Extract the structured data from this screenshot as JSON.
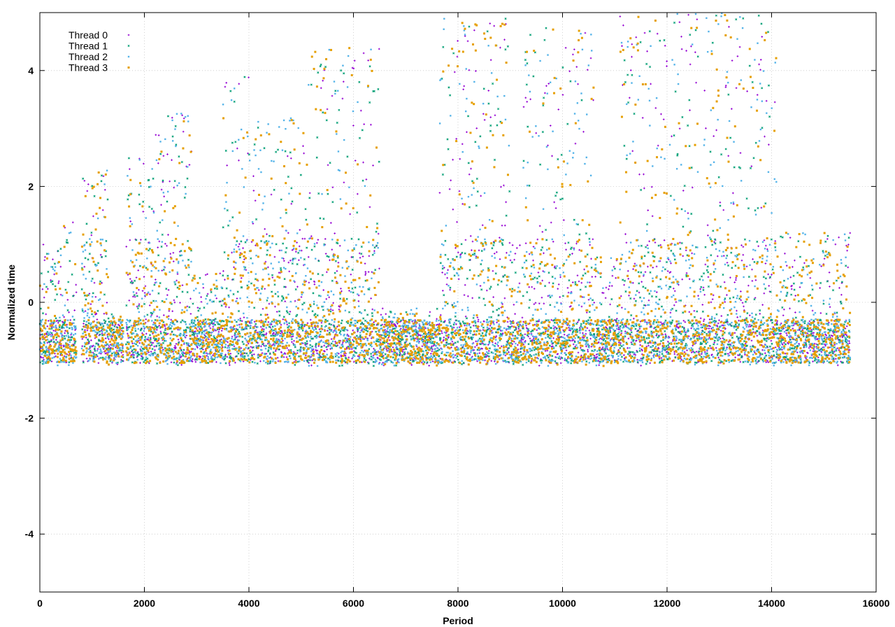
{
  "chart_data": {
    "type": "scatter",
    "title": "",
    "xlabel": "Period",
    "ylabel": "Normalized time",
    "xlim": [
      0,
      16000
    ],
    "ylim": [
      -5,
      5
    ],
    "xticks": [
      0,
      2000,
      4000,
      6000,
      8000,
      10000,
      12000,
      14000,
      16000
    ],
    "yticks": [
      -4,
      -2,
      0,
      2,
      4
    ],
    "xtick_labels": [
      "0",
      "2000",
      "4000",
      "6000",
      "8000",
      "10000",
      "12000",
      "14000",
      "16000"
    ],
    "ytick_labels": [
      "-4",
      "-2",
      "0",
      "2",
      "4"
    ],
    "grid": true,
    "legend_position": "top-left",
    "series": [
      {
        "name": "Thread 0",
        "color": "#9400d3",
        "marker": "plus"
      },
      {
        "name": "Thread 1",
        "color": "#009e73",
        "marker": "x"
      },
      {
        "name": "Thread 2",
        "color": "#56b4e9",
        "marker": "asterisk"
      },
      {
        "name": "Thread 3",
        "color": "#e69f00",
        "marker": "square"
      }
    ],
    "period_range": [
      0,
      15500
    ],
    "segments": [
      {
        "x": [
          0,
          400
        ],
        "ymin": -1.1,
        "ymax": 1.0,
        "burst": false
      },
      {
        "x": [
          400,
          700
        ],
        "ymin": -1.1,
        "ymax": 1.4,
        "burst": false
      },
      {
        "x": [
          800,
          1300
        ],
        "ymin": -1.1,
        "ymax": 2.3,
        "burst": true
      },
      {
        "x": [
          1300,
          1600
        ],
        "ymin": -1.1,
        "ymax": -0.2,
        "burst": false
      },
      {
        "x": [
          1650,
          2200
        ],
        "ymin": -1.1,
        "ymax": 2.5,
        "burst": true
      },
      {
        "x": [
          2200,
          2900
        ],
        "ymin": -1.1,
        "ymax": 3.3,
        "burst": true
      },
      {
        "x": [
          2900,
          3500
        ],
        "ymin": -1.0,
        "ymax": 0.5,
        "burst": false
      },
      {
        "x": [
          3500,
          4100
        ],
        "ymin": -1.1,
        "ymax": 3.9,
        "burst": true
      },
      {
        "x": [
          4100,
          5100
        ],
        "ymin": -1.1,
        "ymax": 3.2,
        "burst": true
      },
      {
        "x": [
          5100,
          6500
        ],
        "ymin": -1.1,
        "ymax": 4.4,
        "burst": true
      },
      {
        "x": [
          6500,
          7650
        ],
        "ymin": -1.1,
        "ymax": -0.1,
        "burst": false
      },
      {
        "x": [
          7650,
          9000
        ],
        "ymin": -1.1,
        "ymax": 4.9,
        "burst": true
      },
      {
        "x": [
          9000,
          9250
        ],
        "ymin": -1.1,
        "ymax": 1.0,
        "burst": false
      },
      {
        "x": [
          9250,
          10600
        ],
        "ymin": -1.1,
        "ymax": 4.8,
        "burst": true
      },
      {
        "x": [
          10600,
          11100
        ],
        "ymin": -1.1,
        "ymax": 0.8,
        "burst": false
      },
      {
        "x": [
          11100,
          12600
        ],
        "ymin": -1.1,
        "ymax": 5.0,
        "burst": true
      },
      {
        "x": [
          12600,
          12700
        ],
        "ymin": -1.1,
        "ymax": 0.5,
        "burst": false
      },
      {
        "x": [
          12700,
          14100
        ],
        "ymin": -1.1,
        "ymax": 5.0,
        "burst": true
      },
      {
        "x": [
          14100,
          15500
        ],
        "ymin": -1.1,
        "ymax": 1.2,
        "burst": false
      }
    ]
  }
}
